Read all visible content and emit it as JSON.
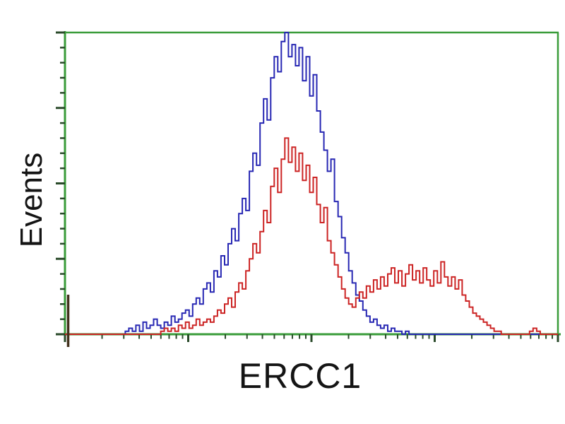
{
  "colors": {
    "axis_green": "#3a9c3a",
    "tick_dark_green": "#2a4a2a",
    "blue_series": "#2727b3",
    "red_series": "#cc2323",
    "origin_spike_brown": "#42301c",
    "label_text": "#141414",
    "background": "#ffffff"
  },
  "chart_data": {
    "type": "line",
    "subtype": "flow-cytometry-overlay-histogram",
    "title": "",
    "xlabel": "ERCC1",
    "ylabel": "Events",
    "x_scale": "log",
    "x_decades": 4,
    "x_major_tick_decades": [
      0,
      1,
      2,
      3,
      4
    ],
    "x_minor_ticks_per_decade": [
      2,
      3,
      4,
      5,
      6,
      7,
      8,
      9
    ],
    "y_scale": "linear",
    "y_major_tick_count": 5,
    "y_minor_ticks_per_major": 4,
    "grid": false,
    "legend": "none",
    "frame": "full-box",
    "bins": 140,
    "values_unit": "fraction of full axis height (0 = baseline, 1 = top of plot)",
    "series": [
      {
        "name": "blue-series",
        "color": "#2727b3",
        "values": [
          0,
          0,
          0,
          0,
          0,
          0,
          0,
          0,
          0,
          0,
          0,
          0,
          0,
          0,
          0,
          0,
          0,
          0.01,
          0.02,
          0.01,
          0.03,
          0.01,
          0.04,
          0.02,
          0.03,
          0.05,
          0.03,
          0.02,
          0.04,
          0.03,
          0.06,
          0.04,
          0.05,
          0.07,
          0.08,
          0.06,
          0.1,
          0.12,
          0.1,
          0.15,
          0.17,
          0.14,
          0.21,
          0.19,
          0.26,
          0.23,
          0.3,
          0.35,
          0.31,
          0.4,
          0.45,
          0.41,
          0.54,
          0.6,
          0.56,
          0.7,
          0.78,
          0.71,
          0.85,
          0.92,
          0.87,
          0.97,
          1.0,
          0.92,
          0.96,
          0.89,
          0.95,
          0.84,
          0.92,
          0.79,
          0.86,
          0.74,
          0.67,
          0.61,
          0.54,
          0.58,
          0.44,
          0.39,
          0.32,
          0.27,
          0.21,
          0.17,
          0.13,
          0.11,
          0.08,
          0.06,
          0.04,
          0.05,
          0.03,
          0.02,
          0.03,
          0.01,
          0.02,
          0.01,
          0.01,
          0,
          0.01,
          0,
          0,
          0,
          0,
          0,
          0,
          0,
          0,
          0,
          0,
          0,
          0,
          0,
          0,
          0,
          0,
          0,
          0,
          0,
          0,
          0,
          0,
          0,
          0,
          0,
          0,
          0,
          0,
          0,
          0,
          0,
          0,
          0,
          0,
          0,
          0,
          0,
          0,
          0,
          0,
          0,
          0
        ]
      },
      {
        "name": "red-series",
        "color": "#cc2323",
        "values": [
          0,
          0,
          0,
          0,
          0,
          0,
          0,
          0,
          0,
          0,
          0,
          0,
          0,
          0,
          0,
          0,
          0,
          0,
          0,
          0,
          0,
          0,
          0,
          0,
          0,
          0,
          0,
          0.01,
          0.02,
          0.01,
          0.02,
          0.01,
          0.03,
          0.02,
          0.04,
          0.02,
          0.03,
          0.05,
          0.03,
          0.04,
          0.05,
          0.04,
          0.06,
          0.08,
          0.07,
          0.1,
          0.12,
          0.09,
          0.14,
          0.17,
          0.15,
          0.21,
          0.25,
          0.3,
          0.27,
          0.34,
          0.41,
          0.37,
          0.49,
          0.55,
          0.47,
          0.58,
          0.65,
          0.57,
          0.62,
          0.54,
          0.6,
          0.51,
          0.56,
          0.47,
          0.52,
          0.43,
          0.37,
          0.42,
          0.31,
          0.27,
          0.23,
          0.19,
          0.15,
          0.12,
          0.1,
          0.09,
          0.12,
          0.14,
          0.12,
          0.16,
          0.14,
          0.18,
          0.15,
          0.19,
          0.16,
          0.2,
          0.22,
          0.17,
          0.21,
          0.16,
          0.2,
          0.23,
          0.18,
          0.21,
          0.17,
          0.22,
          0.18,
          0.16,
          0.21,
          0.17,
          0.24,
          0.19,
          0.16,
          0.19,
          0.15,
          0.18,
          0.13,
          0.11,
          0.09,
          0.07,
          0.06,
          0.05,
          0.04,
          0.03,
          0.02,
          0.01,
          0.01,
          0,
          0,
          0,
          0,
          0,
          0,
          0,
          0,
          0.01,
          0.02,
          0.01,
          0,
          0,
          0,
          0,
          0
        ]
      }
    ],
    "annotations": {
      "origin_spike": "dark vertical artifact line just right of y-axis crossing below the x-axis",
      "blue_peak_note": "blue peak clipped near top border around decade 1.8",
      "red_secondary_bump_note": "broad noisy red bump spanning decades ~2.4-3.4"
    }
  }
}
